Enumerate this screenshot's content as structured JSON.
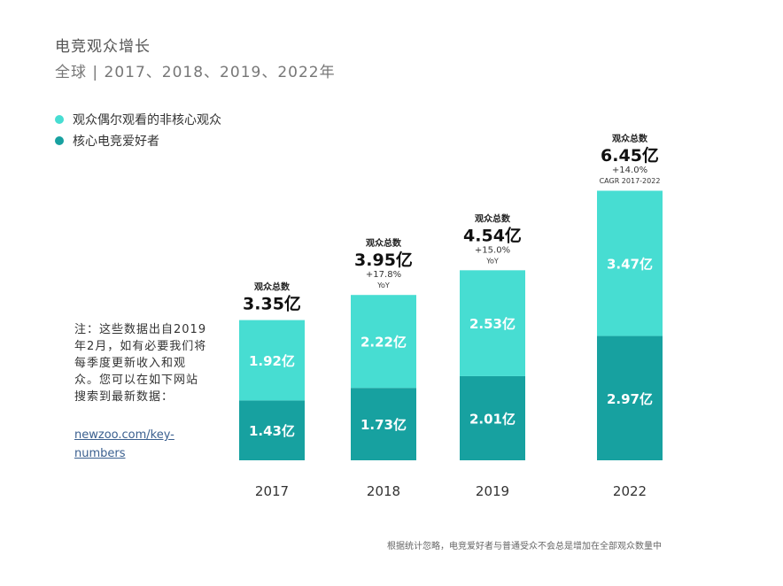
{
  "header": {
    "title": "电竞观众增长",
    "subtitle": "全球 | 2017、2018、2019、2022年"
  },
  "legend": [
    {
      "label": "观众偶尔观看的非核心观众",
      "color": "#47ddd2"
    },
    {
      "label": "核心电竞爱好者",
      "color": "#17a1a0"
    }
  ],
  "note": {
    "text": "注：这些数据出自2019年2月，如有必要我们将每季度更新收入和观众。您可以在如下网站搜索到最新数据：",
    "link": "newzoo.com/key-numbers"
  },
  "footnote": "根据统计忽略，电竞爱好者与普通受众不会总是增加在全部观众数量中",
  "chart_data": {
    "type": "bar",
    "stacked": true,
    "categories": [
      "2017",
      "2018",
      "2019",
      "2022"
    ],
    "series": [
      {
        "name": "核心电竞爱好者",
        "values": [
          1.43,
          1.73,
          2.01,
          2.97
        ],
        "labels": [
          "1.43亿",
          "1.73亿",
          "2.01亿",
          "2.97亿"
        ],
        "color": "#17a1a0"
      },
      {
        "name": "观众偶尔观看的非核心观众",
        "values": [
          1.92,
          2.22,
          2.53,
          3.47
        ],
        "labels": [
          "1.92亿",
          "2.22亿",
          "2.53亿",
          "3.47亿"
        ],
        "color": "#47ddd2"
      }
    ],
    "totals": {
      "heading": "观众总数",
      "values": [
        3.35,
        3.95,
        4.54,
        6.45
      ],
      "labels": [
        "3.35亿",
        "3.95亿",
        "4.54亿",
        "6.45亿"
      ],
      "growth": [
        "",
        "+17.8%",
        "+15.0%",
        "+14.0%"
      ],
      "growth_note": [
        "",
        "YoY",
        "YoY",
        "CAGR 2017-2022"
      ]
    },
    "ylim": [
      0,
      6.45
    ],
    "xlabel": "",
    "ylabel": ""
  }
}
